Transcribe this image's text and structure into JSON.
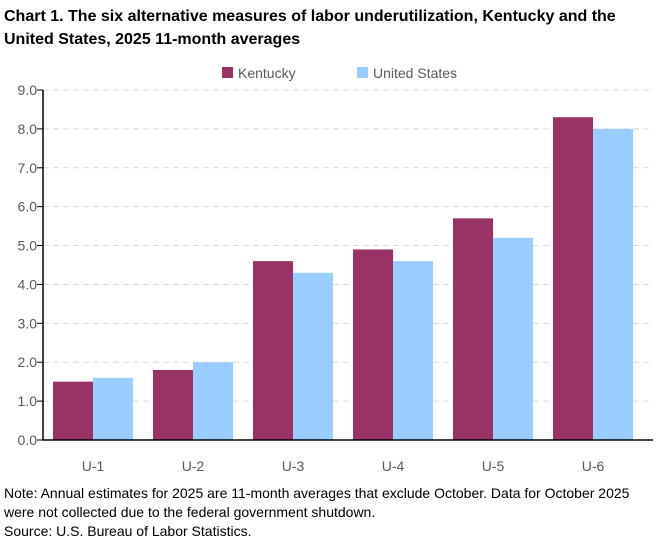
{
  "chart_data": {
    "type": "bar",
    "title": "Chart 1. The six alternative measures of labor underutilization, Kentucky and the United States, 2025 11-month averages",
    "categories": [
      "U-1",
      "U-2",
      "U-3",
      "U-4",
      "U-5",
      "U-6"
    ],
    "series": [
      {
        "name": "Kentucky",
        "color": "#993366",
        "values": [
          1.5,
          1.8,
          4.6,
          4.9,
          5.7,
          8.3
        ]
      },
      {
        "name": "United States",
        "color": "#99CCFF",
        "values": [
          1.6,
          2.0,
          4.3,
          4.6,
          5.2,
          8.0
        ]
      }
    ],
    "ylim": [
      0,
      9
    ],
    "yticks": [
      "0.0",
      "1.0",
      "2.0",
      "3.0",
      "4.0",
      "5.0",
      "6.0",
      "7.0",
      "8.0",
      "9.0"
    ],
    "grid": true,
    "legend": "top",
    "xlabel": "",
    "ylabel": ""
  },
  "note": "Note: Annual estimates for 2025 are 11-month averages that exclude October. Data for October 2025 were not collected due to the federal government shutdown.",
  "source": "Source: U.S. Bureau of Labor Statistics."
}
